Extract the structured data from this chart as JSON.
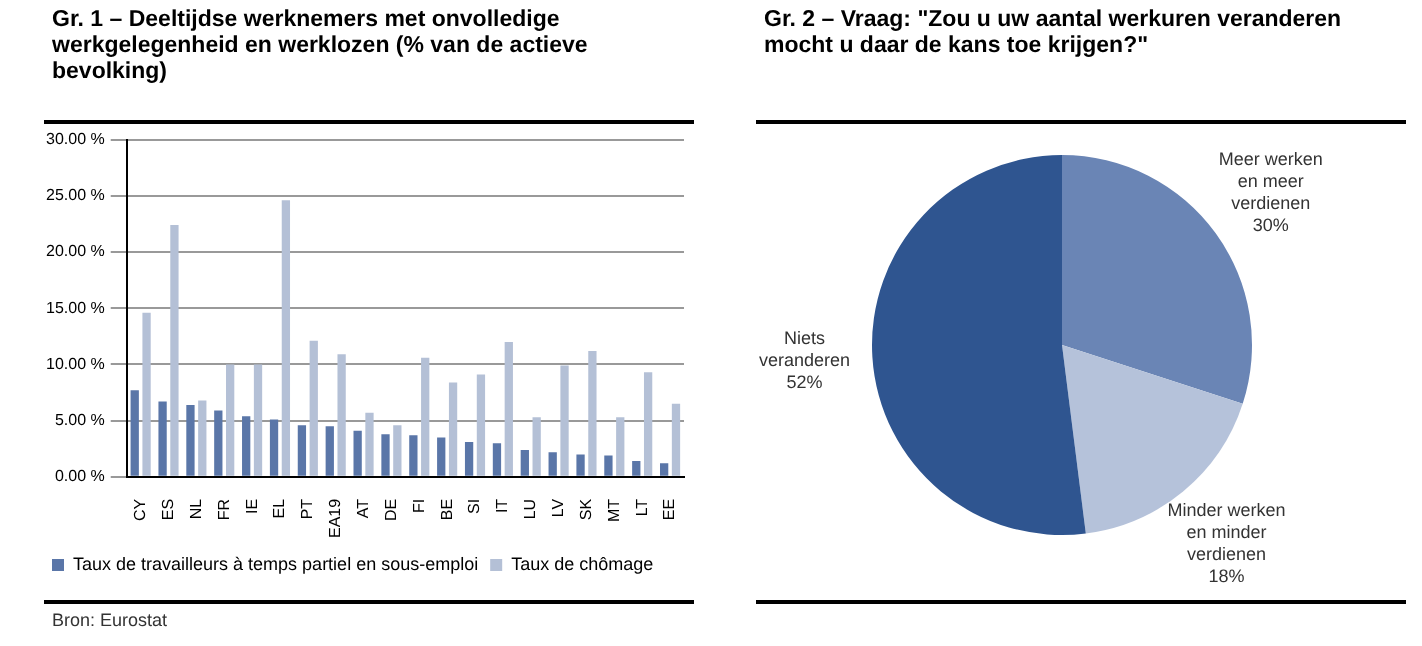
{
  "chart_data": [
    {
      "type": "bar",
      "title": "Gr. 1 – Deeltijdse werknemers met onvolledige werkgelegenheid en werklozen (% van de actieve bevolking)",
      "categories": [
        "CY",
        "ES",
        "NL",
        "FR",
        "IE",
        "EL",
        "PT",
        "EA19",
        "AT",
        "DE",
        "FI",
        "BE",
        "SI",
        "IT",
        "LU",
        "LV",
        "SK",
        "MT",
        "LT",
        "EE"
      ],
      "series": [
        {
          "name": "Taux de travailleurs à temps partiel en sous-emploi",
          "color": "#5a76a8",
          "values": [
            7.7,
            6.7,
            6.4,
            5.9,
            5.4,
            5.1,
            4.6,
            4.5,
            4.1,
            3.8,
            3.7,
            3.5,
            3.1,
            3.0,
            2.4,
            2.2,
            2.0,
            1.9,
            1.4,
            1.2
          ]
        },
        {
          "name": "Taux de chômage",
          "color": "#b4c0d6",
          "values": [
            14.6,
            22.4,
            6.8,
            10.0,
            10.0,
            24.6,
            12.1,
            10.9,
            5.7,
            4.6,
            10.6,
            8.4,
            9.1,
            12.0,
            5.3,
            9.9,
            11.2,
            5.3,
            9.3,
            6.5
          ]
        }
      ],
      "ylim": [
        0,
        30
      ],
      "yticks": [
        {
          "value": 0,
          "label": "0.00 %"
        },
        {
          "value": 5,
          "label": "5.00 %"
        },
        {
          "value": 10,
          "label": "10.00 %"
        },
        {
          "value": 15,
          "label": "15.00 %"
        },
        {
          "value": 20,
          "label": "20.00 %"
        },
        {
          "value": 25,
          "label": "25.00 %"
        },
        {
          "value": 30,
          "label": "30.00 %"
        }
      ],
      "grid": "y",
      "legend": "bottom",
      "annotations": [
        "Bron: Eurostat"
      ]
    },
    {
      "type": "pie",
      "title": "Gr. 2 – Vraag: \"Zou u uw aantal werkuren veranderen mocht u daar de kans toe krijgen?\"",
      "categories": [
        "Meer werken en meer verdienen",
        "Minder werken en minder verdienen",
        "Niets veranderen"
      ],
      "values": [
        30,
        18,
        52
      ],
      "colors": [
        "#6a85b5",
        "#b5c2da",
        "#2f5590"
      ],
      "value_labels": [
        "30%",
        "18%",
        "52%"
      ]
    }
  ]
}
